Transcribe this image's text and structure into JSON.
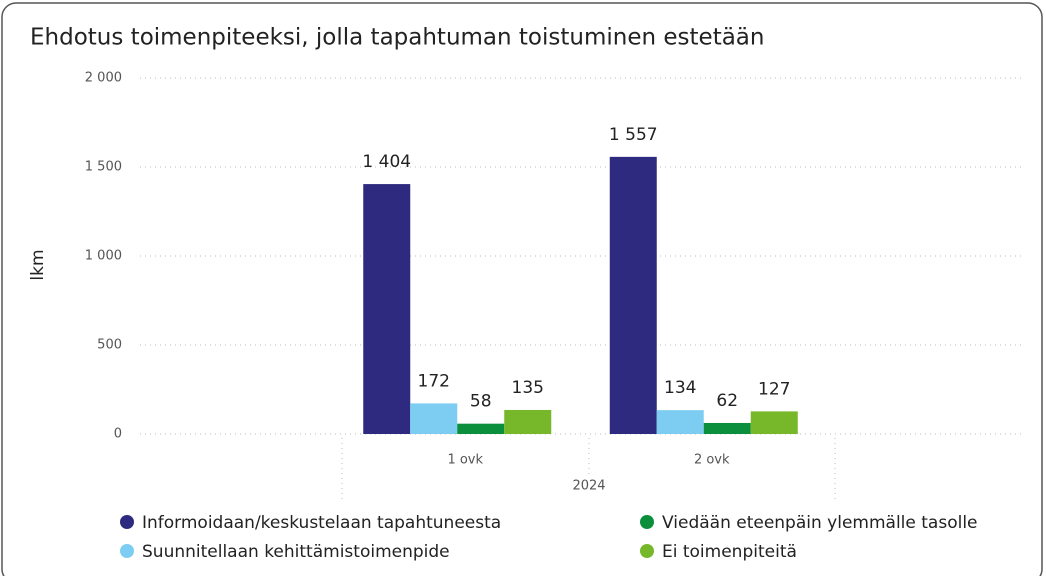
{
  "chart_data": {
    "type": "bar",
    "title": "Ehdotus toimenpiteeksi, jolla tapahtuman toistuminen estetään",
    "ylabel": "lkm",
    "categories": [
      "1 ovk",
      "2 ovk"
    ],
    "group_label": "2024",
    "series": [
      {
        "name": "Informoidaan/keskustelaan tapahtuneesta",
        "color": "#2e2a7f",
        "values": [
          1404,
          1557
        ],
        "value_labels": [
          "1 404",
          "1 557"
        ]
      },
      {
        "name": "Suunnitellaan kehittämistoimenpide",
        "color": "#7dcdf2",
        "values": [
          172,
          134
        ]
      },
      {
        "name": "Viedään eteenpäin ylemmälle tasolle",
        "color": "#0b8f3c",
        "values": [
          58,
          62
        ]
      },
      {
        "name": "Ei toimenpiteitä",
        "color": "#76b82a",
        "values": [
          135,
          127
        ]
      }
    ],
    "ylim": [
      0,
      2000
    ],
    "yticks": [
      0,
      500,
      {
        "value": 1000,
        "label": "1 000"
      },
      {
        "value": 1500,
        "label": "1 500"
      },
      {
        "value": 2000,
        "label": "2 000"
      }
    ],
    "grid": true,
    "legend": "bottom"
  }
}
